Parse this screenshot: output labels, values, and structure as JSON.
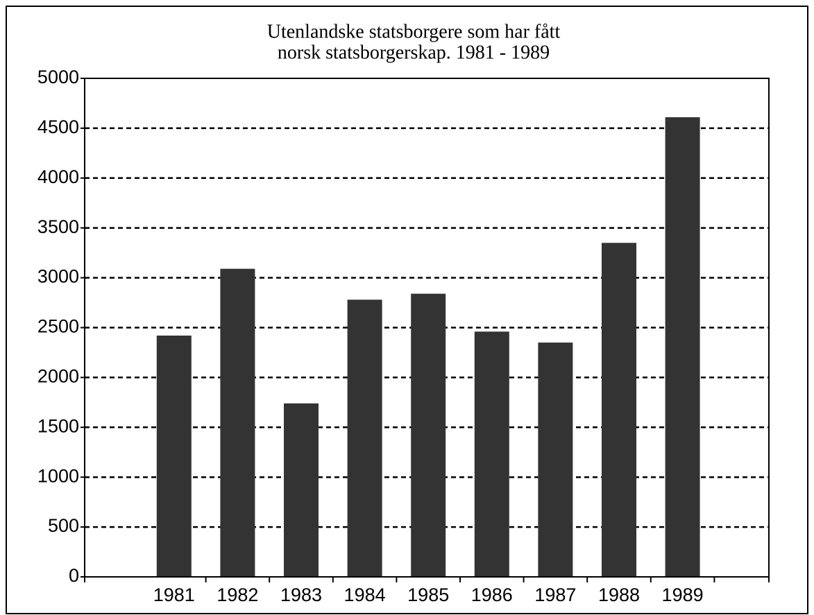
{
  "chart_data": {
    "type": "bar",
    "title": [
      "Utenlandske statsborgere som har fått",
      "norsk statsborgerskap. 1981 - 1989"
    ],
    "categories": [
      "1981",
      "1982",
      "1983",
      "1984",
      "1985",
      "1986",
      "1987",
      "1988",
      "1989"
    ],
    "values": [
      2420,
      3090,
      1740,
      2780,
      2840,
      2460,
      2350,
      3350,
      4610
    ],
    "color": "#333333",
    "ylim": [
      0,
      5000
    ],
    "yticks": [
      0,
      500,
      1000,
      1500,
      2000,
      2500,
      3000,
      3500,
      4000,
      4500,
      5000
    ],
    "grid": true
  }
}
